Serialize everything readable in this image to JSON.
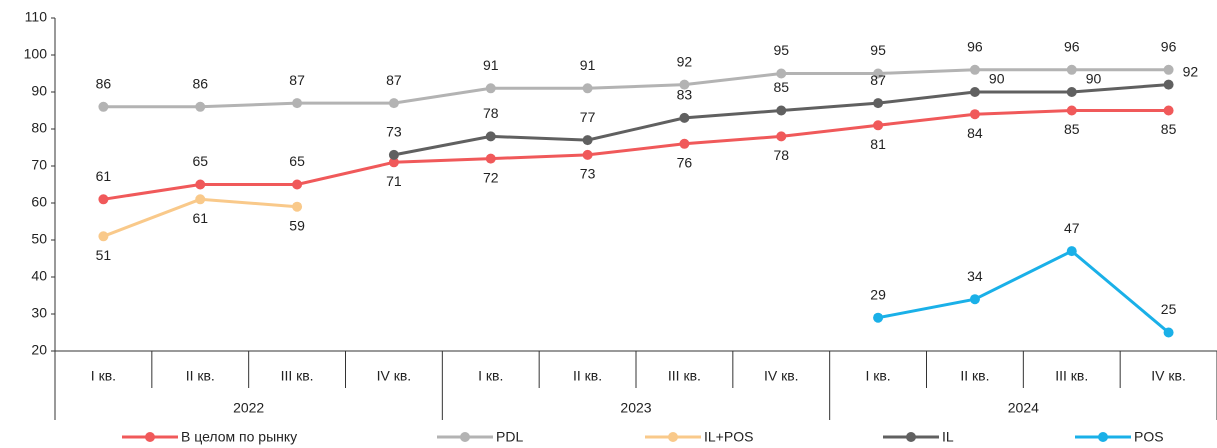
{
  "chart_data": {
    "type": "line",
    "categories": [
      "I кв.",
      "II кв.",
      "III кв.",
      "IV кв.",
      "I кв.",
      "II кв.",
      "III кв.",
      "IV кв.",
      "I кв.",
      "II кв.",
      "III кв.",
      "IV кв."
    ],
    "groups": [
      "2022",
      "2023",
      "2024"
    ],
    "series": [
      {
        "name": "В целом по рынку",
        "color": "#f0595a",
        "values": [
          61,
          65,
          65,
          71,
          72,
          73,
          76,
          78,
          81,
          84,
          85,
          85
        ]
      },
      {
        "name": "PDL",
        "color": "#b3b3b3",
        "values": [
          86,
          86,
          87,
          87,
          91,
          91,
          92,
          95,
          95,
          96,
          96,
          96
        ]
      },
      {
        "name": "IL+POS",
        "color": "#f9c98a",
        "values": [
          51,
          61,
          59,
          null,
          null,
          null,
          null,
          null,
          null,
          null,
          null,
          null
        ]
      },
      {
        "name": "IL",
        "color": "#606060",
        "values": [
          null,
          null,
          null,
          73,
          78,
          77,
          83,
          85,
          87,
          90,
          90,
          92
        ]
      },
      {
        "name": "POS",
        "color": "#1ab0e8",
        "values": [
          null,
          null,
          null,
          null,
          null,
          null,
          null,
          null,
          29,
          34,
          47,
          25
        ]
      }
    ],
    "ylim": [
      20,
      110
    ],
    "yticks": [
      20,
      30,
      40,
      50,
      60,
      70,
      80,
      90,
      100,
      110
    ],
    "grid": false,
    "legend": "bottom"
  }
}
